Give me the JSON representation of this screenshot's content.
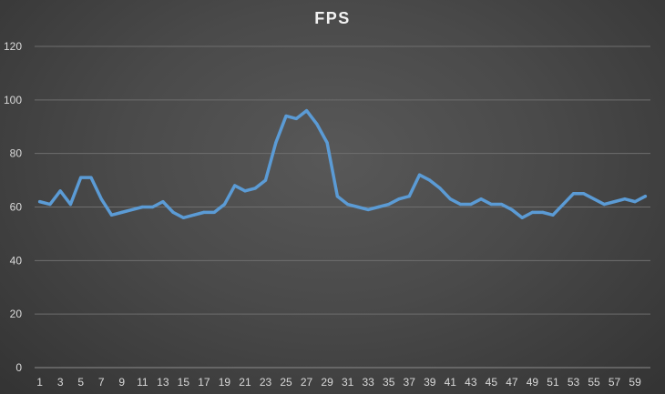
{
  "chart_data": {
    "type": "line",
    "title": "FPS",
    "xlabel": "",
    "ylabel": "",
    "x": [
      1,
      2,
      3,
      4,
      5,
      6,
      7,
      8,
      9,
      10,
      11,
      12,
      13,
      14,
      15,
      16,
      17,
      18,
      19,
      20,
      21,
      22,
      23,
      24,
      25,
      26,
      27,
      28,
      29,
      30,
      31,
      32,
      33,
      34,
      35,
      36,
      37,
      38,
      39,
      40,
      41,
      42,
      43,
      44,
      45,
      46,
      47,
      48,
      49,
      50,
      51,
      52,
      53,
      54,
      55,
      56,
      57,
      58,
      59,
      60
    ],
    "x_tick_labels": [
      "1",
      "3",
      "5",
      "7",
      "9",
      "11",
      "13",
      "15",
      "17",
      "19",
      "21",
      "23",
      "25",
      "27",
      "29",
      "31",
      "33",
      "35",
      "37",
      "39",
      "41",
      "43",
      "45",
      "47",
      "49",
      "51",
      "53",
      "55",
      "57",
      "59"
    ],
    "series": [
      {
        "values": [
          62,
          61,
          66,
          61,
          71,
          71,
          63,
          57,
          58,
          59,
          60,
          60,
          62,
          58,
          56,
          57,
          58,
          58,
          61,
          68,
          66,
          67,
          70,
          84,
          94,
          93,
          96,
          91,
          84,
          64,
          61,
          60,
          59,
          60,
          61,
          63,
          64,
          72,
          70,
          67,
          63,
          61,
          61,
          63,
          61,
          61,
          59,
          56,
          58,
          58,
          57,
          61,
          65,
          65,
          63,
          61,
          62,
          63,
          62,
          64
        ]
      }
    ],
    "y_ticks": [
      0,
      20,
      40,
      60,
      80,
      100,
      120
    ],
    "ylim": [
      0,
      120
    ],
    "grid": true,
    "legend": "none",
    "colors": {
      "line": "#5b9bd5",
      "grid": "#6e6e6e",
      "axis": "#8c8c8c",
      "text": "#d9d9d9",
      "title": "#f2f2f2"
    }
  }
}
